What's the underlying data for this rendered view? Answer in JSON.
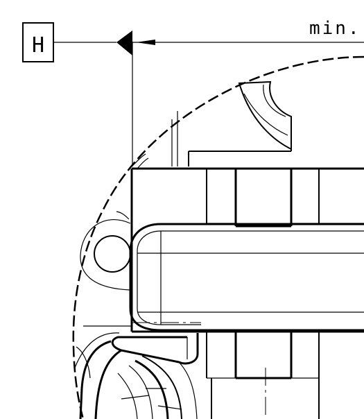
{
  "dimension": {
    "label": "min."
  },
  "datum": {
    "letter": "H"
  }
}
